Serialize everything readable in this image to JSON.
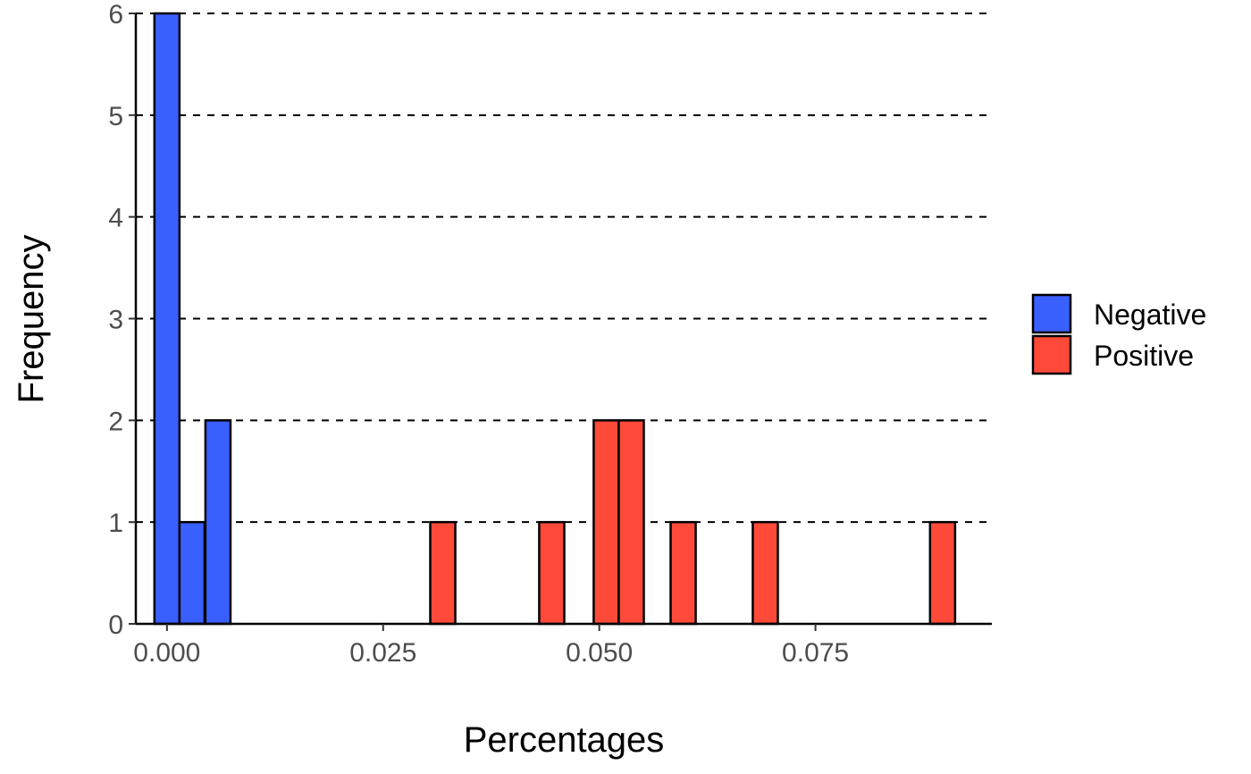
{
  "chart_data": {
    "type": "bar",
    "title": "",
    "xlabel": "Percentages",
    "ylabel": "Frequency",
    "xlim": [
      -0.0036,
      0.0954
    ],
    "ylim": [
      0,
      6
    ],
    "bin_width": 0.0029,
    "x_ticks": [
      0.0,
      0.025,
      0.05,
      0.075
    ],
    "x_tick_labels": [
      "0.000",
      "0.025",
      "0.050",
      "0.075"
    ],
    "y_ticks": [
      0,
      1,
      2,
      3,
      4,
      5,
      6
    ],
    "y_tick_labels": [
      "0",
      "1",
      "2",
      "3",
      "4",
      "5",
      "6"
    ],
    "grid": "horizontal dashed",
    "legend_position": "right",
    "series": [
      {
        "name": "Negative",
        "color": "#3A5FFF",
        "bins": [
          {
            "x": 0.0,
            "count": 6
          },
          {
            "x": 0.0029,
            "count": 1
          },
          {
            "x": 0.0059,
            "count": 2
          }
        ]
      },
      {
        "name": "Positive",
        "color": "#FF4A3A",
        "bins": [
          {
            "x": 0.0319,
            "count": 1
          },
          {
            "x": 0.0445,
            "count": 1
          },
          {
            "x": 0.0508,
            "count": 2
          },
          {
            "x": 0.0537,
            "count": 2
          },
          {
            "x": 0.0597,
            "count": 1
          },
          {
            "x": 0.0692,
            "count": 1
          },
          {
            "x": 0.0897,
            "count": 1
          }
        ]
      }
    ]
  }
}
